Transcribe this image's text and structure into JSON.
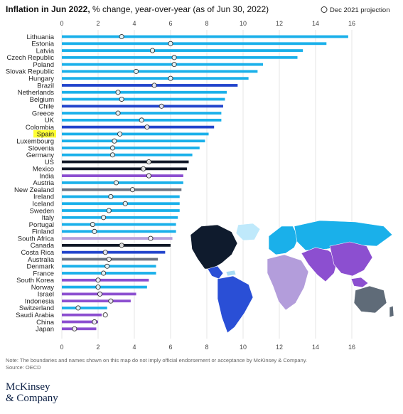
{
  "header": {
    "title_bold": "Inflation in Jun 2022,",
    "title_rest": " % change, year-over-year (as of Jun 30, 2022)",
    "legend_label": "Dec 2021 projection"
  },
  "chart_data": {
    "type": "bar",
    "orientation": "horizontal",
    "title": "Inflation in Jun 2022, % change, year-over-year (as of Jun 30, 2022)",
    "xlim": [
      0,
      16
    ],
    "xticks": [
      0,
      2,
      4,
      6,
      8,
      10,
      12,
      14,
      16
    ],
    "highlight": "Spain",
    "legend": {
      "marker": "open-circle",
      "label": "Dec 2021 projection",
      "position": "top-right"
    },
    "colors": {
      "europe": "#1ab0ea",
      "latam": "#2244cc",
      "north_america": "#111827",
      "asia": "#8c4fd0",
      "oceania": "#6b7280",
      "africa": "#b39ddb",
      "highlight_bg": "#ffff33"
    },
    "countries": [
      {
        "name": "Lithuania",
        "value": 15.8,
        "projection": 3.3,
        "region": "europe"
      },
      {
        "name": "Estonia",
        "value": 14.6,
        "projection": 6.0,
        "region": "europe"
      },
      {
        "name": "Latvia",
        "value": 13.3,
        "projection": 5.0,
        "region": "europe"
      },
      {
        "name": "Czech Republic",
        "value": 13.0,
        "projection": 6.2,
        "region": "europe"
      },
      {
        "name": "Poland",
        "value": 11.1,
        "projection": 6.2,
        "region": "europe"
      },
      {
        "name": "Slovak Republic",
        "value": 10.8,
        "projection": 4.1,
        "region": "europe"
      },
      {
        "name": "Hungary",
        "value": 10.3,
        "projection": 6.0,
        "region": "europe"
      },
      {
        "name": "Brazil",
        "value": 9.7,
        "projection": 5.1,
        "region": "latam"
      },
      {
        "name": "Netherlands",
        "value": 9.1,
        "projection": 3.1,
        "region": "europe"
      },
      {
        "name": "Belgium",
        "value": 9.0,
        "projection": 3.3,
        "region": "europe"
      },
      {
        "name": "Chile",
        "value": 8.9,
        "projection": 5.5,
        "region": "latam"
      },
      {
        "name": "Greece",
        "value": 8.8,
        "projection": 3.1,
        "region": "europe"
      },
      {
        "name": "UK",
        "value": 8.8,
        "projection": 4.4,
        "region": "europe"
      },
      {
        "name": "Colombia",
        "value": 8.4,
        "projection": 4.7,
        "region": "latam"
      },
      {
        "name": "Spain",
        "value": 8.1,
        "projection": 3.2,
        "region": "europe"
      },
      {
        "name": "Luxembourg",
        "value": 7.9,
        "projection": 2.9,
        "region": "europe"
      },
      {
        "name": "Slovenia",
        "value": 7.6,
        "projection": 2.8,
        "region": "europe"
      },
      {
        "name": "Germany",
        "value": 7.2,
        "projection": 2.8,
        "region": "europe"
      },
      {
        "name": "US",
        "value": 7.0,
        "projection": 4.8,
        "region": "north_america"
      },
      {
        "name": "Mexico",
        "value": 6.9,
        "projection": 4.5,
        "region": "north_america"
      },
      {
        "name": "India",
        "value": 6.7,
        "projection": 4.8,
        "region": "asia"
      },
      {
        "name": "Austria",
        "value": 6.7,
        "projection": 3.0,
        "region": "europe"
      },
      {
        "name": "New Zealand",
        "value": 6.6,
        "projection": 3.9,
        "region": "oceania"
      },
      {
        "name": "Ireland",
        "value": 6.5,
        "projection": 2.7,
        "region": "europe"
      },
      {
        "name": "Iceland",
        "value": 6.5,
        "projection": 3.5,
        "region": "europe"
      },
      {
        "name": "Sweden",
        "value": 6.5,
        "projection": 2.6,
        "region": "europe"
      },
      {
        "name": "Italy",
        "value": 6.4,
        "projection": 2.3,
        "region": "europe"
      },
      {
        "name": "Portugal",
        "value": 6.3,
        "projection": 1.7,
        "region": "europe"
      },
      {
        "name": "Finland",
        "value": 6.3,
        "projection": 1.8,
        "region": "europe"
      },
      {
        "name": "South Africa",
        "value": 6.1,
        "projection": 4.9,
        "region": "africa"
      },
      {
        "name": "Canada",
        "value": 6.0,
        "projection": 3.3,
        "region": "north_america"
      },
      {
        "name": "Costa Rica",
        "value": 5.7,
        "projection": 2.4,
        "region": "latam"
      },
      {
        "name": "Australia",
        "value": 5.3,
        "projection": 2.6,
        "region": "oceania"
      },
      {
        "name": "Denmark",
        "value": 5.2,
        "projection": 2.5,
        "region": "europe"
      },
      {
        "name": "France",
        "value": 5.2,
        "projection": 2.3,
        "region": "europe"
      },
      {
        "name": "South Korea",
        "value": 4.8,
        "projection": 2.0,
        "region": "asia"
      },
      {
        "name": "Norway",
        "value": 4.7,
        "projection": 2.0,
        "region": "europe"
      },
      {
        "name": "Israel",
        "value": 4.1,
        "projection": 2.1,
        "region": "asia"
      },
      {
        "name": "Indonesia",
        "value": 3.8,
        "projection": 2.7,
        "region": "asia"
      },
      {
        "name": "Switzerland",
        "value": 2.5,
        "projection": 0.9,
        "region": "europe"
      },
      {
        "name": "Saudi Arabia",
        "value": 2.2,
        "projection": 2.4,
        "region": "asia"
      },
      {
        "name": "China",
        "value": 2.0,
        "projection": 1.8,
        "region": "asia"
      },
      {
        "name": "Japan",
        "value": 1.9,
        "projection": 0.7,
        "region": "asia"
      }
    ]
  },
  "map": {
    "colors": {
      "north_america": "#0f1b2d",
      "latam": "#2a4fd6",
      "europe": "#1ab0ea",
      "russia": "#1ab0ea",
      "asia": "#8c4fd0",
      "africa": "#b39ddb",
      "oceania": "#5f6b78",
      "greenland": "#bfe9fb",
      "other_americas": "#a8dcf5"
    }
  },
  "footer": {
    "note": "Note: The boundaries and names shown on this map do not imply official endorsement or acceptance by McKinsey & Company.",
    "source": "Source: OECD",
    "logo_line1": "McKinsey",
    "logo_line2": "& Company"
  }
}
